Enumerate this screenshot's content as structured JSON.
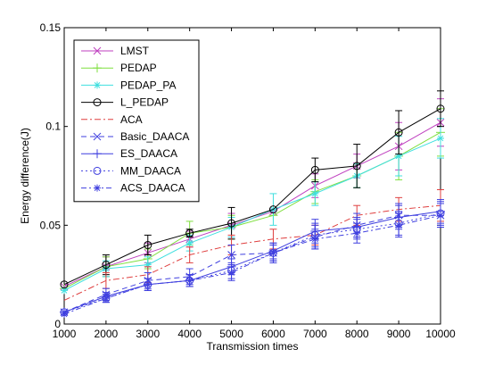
{
  "chart_data": {
    "type": "line",
    "title": "",
    "xlabel": "Transmission times",
    "ylabel": "Energy difference(J)",
    "x": [
      1000,
      2000,
      3000,
      4000,
      5000,
      6000,
      7000,
      8000,
      9000,
      10000
    ],
    "xlim": [
      1000,
      10000
    ],
    "ylim": [
      0,
      0.15
    ],
    "xticks": [
      1000,
      2000,
      3000,
      4000,
      5000,
      6000,
      7000,
      8000,
      9000,
      10000
    ],
    "yticks": [
      0,
      0.05,
      0.1,
      0.15
    ],
    "ytick_labels": [
      "0",
      "0.05",
      "0.1",
      "0.15"
    ],
    "grid": false,
    "legend_position": "top-left",
    "series": [
      {
        "name": "LMST",
        "color": "#bf3fbf",
        "dash": "",
        "marker": "x",
        "values": [
          0.019,
          0.029,
          0.036,
          0.043,
          0.05,
          0.057,
          0.07,
          0.08,
          0.09,
          0.102
        ],
        "err": [
          0,
          0.005,
          0.005,
          0.004,
          0.006,
          0,
          0.006,
          0.006,
          0.012,
          0.012
        ]
      },
      {
        "name": "PEDAP",
        "color": "#7fdf3f",
        "dash": "",
        "marker": "plus",
        "values": [
          0.018,
          0.029,
          0.033,
          0.046,
          0.049,
          0.055,
          0.067,
          0.075,
          0.085,
          0.097
        ],
        "err": [
          0,
          0.005,
          0.005,
          0.006,
          0.006,
          0,
          0.006,
          0.006,
          0.012,
          0.012
        ]
      },
      {
        "name": "PEDAP_PA",
        "color": "#3fdfdf",
        "dash": "",
        "marker": "star",
        "values": [
          0.017,
          0.028,
          0.03,
          0.041,
          0.049,
          0.058,
          0.066,
          0.075,
          0.085,
          0.094
        ],
        "err": [
          0,
          0.004,
          0.004,
          0.004,
          0.005,
          0.008,
          0.006,
          0.006,
          0.01,
          0.01
        ]
      },
      {
        "name": "L_PEDAP",
        "color": "#000000",
        "dash": "",
        "marker": "circle",
        "values": [
          0.02,
          0.03,
          0.04,
          0.046,
          0.051,
          0.058,
          0.078,
          0.08,
          0.097,
          0.109
        ],
        "err": [
          0,
          0.005,
          0.005,
          0.002,
          0.008,
          0,
          0.006,
          0.011,
          0.011,
          0.009
        ]
      },
      {
        "name": "ACA",
        "color": "#df3f3f",
        "dash": "7 3 2 3",
        "marker": "none",
        "values": [
          0.012,
          0.022,
          0.025,
          0.035,
          0.04,
          0.043,
          0.045,
          0.055,
          0.058,
          0.06
        ],
        "err": [
          0,
          0.004,
          0.004,
          0.004,
          0.005,
          0.005,
          0.005,
          0.005,
          0.006,
          0.008
        ]
      },
      {
        "name": "Basic_DAACA",
        "color": "#3f3fdf",
        "dash": "6 4",
        "marker": "x",
        "values": [
          0.006,
          0.015,
          0.022,
          0.024,
          0.035,
          0.036,
          0.044,
          0.05,
          0.055,
          0.055
        ],
        "err": [
          0,
          0.003,
          0.004,
          0.004,
          0.005,
          0.005,
          0.006,
          0.006,
          0.006,
          0.006
        ]
      },
      {
        "name": "ES_DAACA",
        "color": "#3f3fdf",
        "dash": "",
        "marker": "plus",
        "values": [
          0.006,
          0.014,
          0.02,
          0.022,
          0.029,
          0.037,
          0.047,
          0.049,
          0.054,
          0.057
        ],
        "err": [
          0,
          0.002,
          0.003,
          0.003,
          0.004,
          0.004,
          0.006,
          0.005,
          0.006,
          0.006
        ]
      },
      {
        "name": "MM_DAACA",
        "color": "#3f3fdf",
        "dash": "2 3",
        "marker": "circle",
        "values": [
          0.006,
          0.013,
          0.02,
          0.022,
          0.027,
          0.036,
          0.045,
          0.048,
          0.051,
          0.056
        ],
        "err": [
          0,
          0.002,
          0.003,
          0.003,
          0.004,
          0.004,
          0.006,
          0.005,
          0.006,
          0.006
        ]
      },
      {
        "name": "ACS_DAACA",
        "color": "#3f3fdf",
        "dash": "6 3 2 3",
        "marker": "star",
        "values": [
          0.005,
          0.013,
          0.02,
          0.022,
          0.026,
          0.036,
          0.043,
          0.046,
          0.05,
          0.055
        ],
        "err": [
          0,
          0.002,
          0.003,
          0.003,
          0.004,
          0.004,
          0.005,
          0.005,
          0.006,
          0.006
        ]
      }
    ]
  }
}
